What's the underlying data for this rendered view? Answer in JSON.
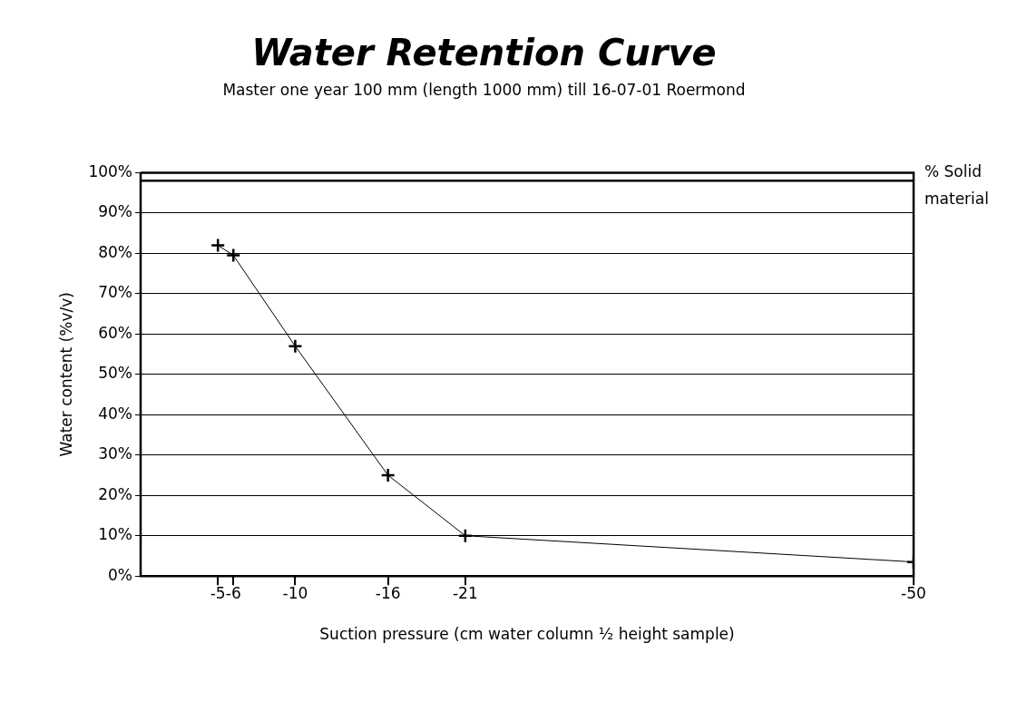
{
  "chart_data": {
    "type": "line",
    "title": "Water Retention Curve",
    "subtitle": "Master one year 100 mm (length 1000 mm) till 16-07-01 Roermond",
    "xlabel": "Suction pressure (cm water column ½ height sample)",
    "ylabel": "Water content (%v/v)",
    "x": [
      -5,
      -6,
      -10,
      -16,
      -21,
      -50
    ],
    "series": [
      {
        "color": "#000000",
        "values": [
          82,
          79.5,
          57,
          25,
          10,
          3.5
        ]
      }
    ],
    "xlim": [
      0,
      -50
    ],
    "xticks": [
      -5,
      -6,
      -10,
      -16,
      -21,
      -50
    ],
    "ylim": [
      0,
      100
    ],
    "yticks": [
      {
        "value": 0,
        "label": "0%"
      },
      {
        "value": 10,
        "label": "10%"
      },
      {
        "value": 20,
        "label": "20%"
      },
      {
        "value": 30,
        "label": "30%"
      },
      {
        "value": 40,
        "label": "40%"
      },
      {
        "value": 50,
        "label": "50%"
      },
      {
        "value": 60,
        "label": "60%"
      },
      {
        "value": 70,
        "label": "70%"
      },
      {
        "value": 80,
        "label": "80%"
      },
      {
        "value": 90,
        "label": "90%"
      },
      {
        "value": 100,
        "label": "100%"
      }
    ],
    "ref_lines": [
      {
        "axis": "y",
        "value": 98,
        "label": "% Solid material",
        "color": "#000000"
      }
    ],
    "grid": "y",
    "legend": false,
    "marker": "cross",
    "line_style": "solid"
  }
}
